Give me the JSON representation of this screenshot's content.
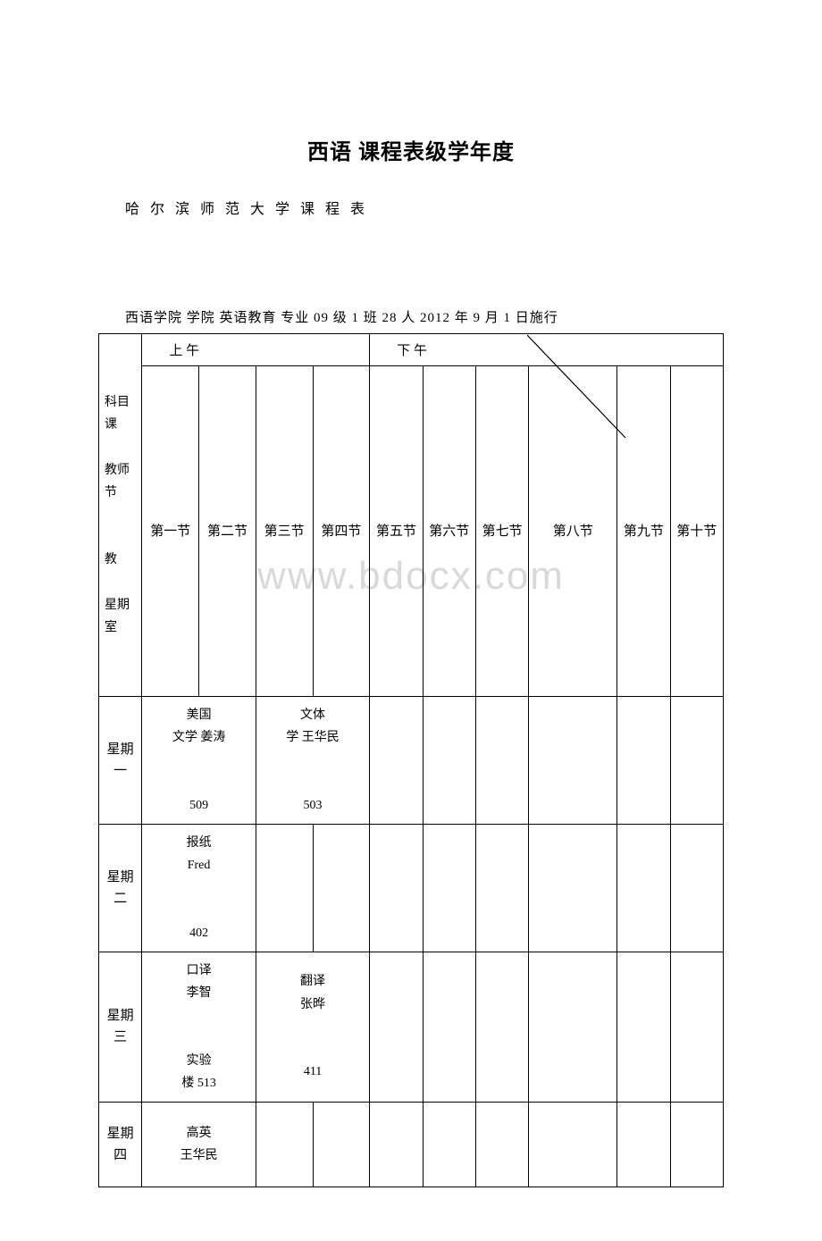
{
  "title": "西语 课程表级学年度",
  "subtitle": "哈 尔 滨 师 范 大 学 课 程 表",
  "info_line": "西语学院 学院 英语教育 专业 09 级 1 班 28 人 2012 年 9 月 1 日施行",
  "watermark": "www.bdocx.com",
  "header": {
    "corner_top": "科目课",
    "corner_mid": "教师节",
    "corner_bot1": "教",
    "corner_bot2": "星期室",
    "am": "上 午",
    "pm": "下 午"
  },
  "periods": {
    "p1": "第一节",
    "p2": "第二节",
    "p3": "第三节",
    "p4": "第四节",
    "p5": "第五节",
    "p6": "第六节",
    "p7": "第七节",
    "p8": "第八节",
    "p9": "第九节",
    "p10": "第十节"
  },
  "days": {
    "mon": {
      "label": "星期一",
      "c12": "美国\n文学 姜涛\n\n509",
      "c34": "文体\n学 王华民\n\n503"
    },
    "tue": {
      "label": "星期二",
      "c12": "报纸\nFred\n\n402"
    },
    "wed": {
      "label": "星期三",
      "c12": "口译\n李智\n\n实验\n楼 513",
      "c34": "翻译\n张晔\n\n411"
    },
    "thu": {
      "label": "星期四",
      "c12": "高英\n王华民"
    }
  },
  "colors": {
    "text": "#000000",
    "border": "#000000",
    "background": "#ffffff",
    "watermark": "#d9d9d9"
  }
}
